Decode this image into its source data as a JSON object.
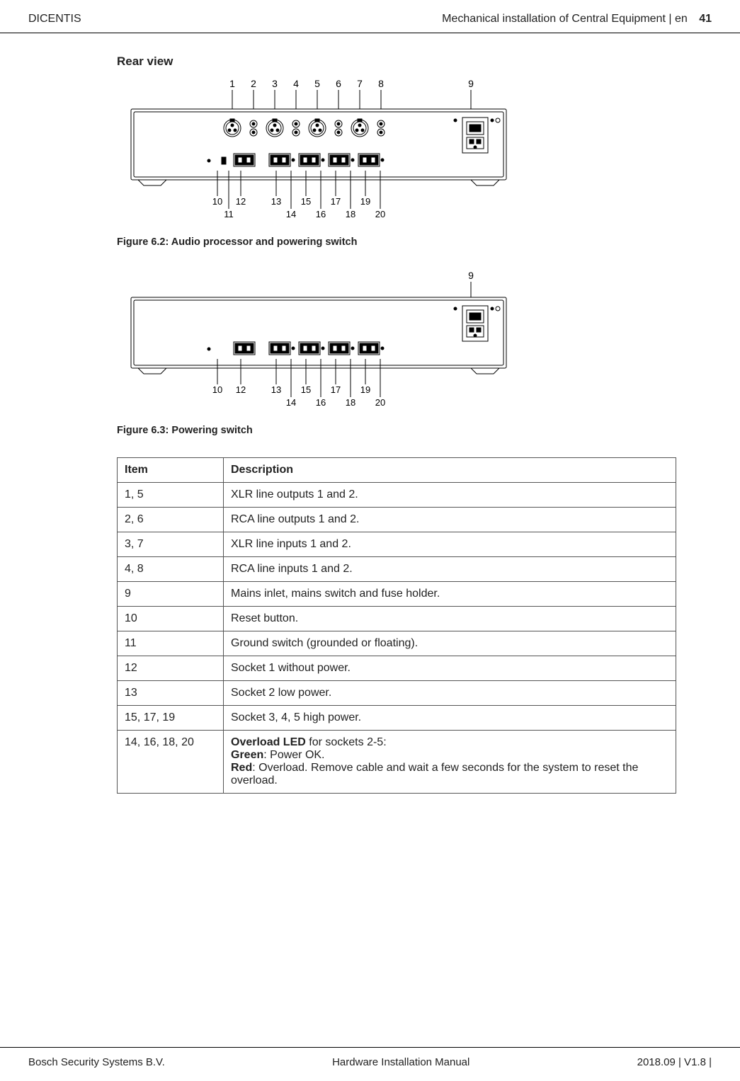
{
  "header": {
    "left": "DICENTIS",
    "right_text": "Mechanical installation of Central Equipment | en",
    "page": "41"
  },
  "section_title": "Rear view",
  "figure1": {
    "caption": "Figure 6.2: Audio processor and powering switch",
    "top_labels": [
      "1",
      "2",
      "3",
      "4",
      "5",
      "6",
      "7",
      "8",
      "9"
    ],
    "top_x": [
      163,
      193,
      223,
      253,
      283,
      313,
      343,
      373,
      500
    ],
    "bottom_labels_a": [
      "10",
      "12",
      "13",
      "15",
      "17",
      "19"
    ],
    "bottom_xa": [
      142,
      175,
      225,
      267,
      309,
      351
    ],
    "bottom_labels_b": [
      "11",
      "14",
      "16",
      "18",
      "20"
    ],
    "bottom_xb": [
      158,
      246,
      288,
      330,
      372
    ],
    "colors": {
      "stroke": "#000000",
      "fill_bg": "#ffffff",
      "fill_grey": "#8a8a8a"
    }
  },
  "figure2": {
    "caption": "Figure 6.3: Powering switch",
    "top_labels": [
      "9"
    ],
    "top_x": [
      500
    ],
    "bottom_labels_a": [
      "10",
      "12",
      "13",
      "15",
      "17",
      "19"
    ],
    "bottom_xa": [
      142,
      175,
      225,
      267,
      309,
      351
    ],
    "bottom_labels_b": [
      "14",
      "16",
      "18",
      "20"
    ],
    "bottom_xb": [
      246,
      288,
      330,
      372
    ],
    "colors": {
      "stroke": "#000000",
      "fill_bg": "#ffffff"
    }
  },
  "table": {
    "headers": [
      "Item",
      "Description"
    ],
    "rows": [
      {
        "item": "1, 5",
        "desc": "XLR line outputs 1 and 2."
      },
      {
        "item": "2, 6",
        "desc": "RCA line outputs 1 and 2."
      },
      {
        "item": "3, 7",
        "desc": "XLR line inputs 1 and 2."
      },
      {
        "item": "4, 8",
        "desc": "RCA line inputs 1 and 2."
      },
      {
        "item": "9",
        "desc": "Mains inlet, mains switch and fuse holder."
      },
      {
        "item": "10",
        "desc": "Reset button."
      },
      {
        "item": "11",
        "desc": "Ground switch (grounded or floating)."
      },
      {
        "item": "12",
        "desc": "Socket 1 without power."
      },
      {
        "item": "13",
        "desc": "Socket 2 low power."
      },
      {
        "item": "15, 17, 19",
        "desc": "Socket 3, 4, 5 high power."
      }
    ],
    "last_row": {
      "item": "14, 16, 18, 20",
      "line1_bold": "Overload LED",
      "line1_rest": " for sockets 2-5:",
      "line2_bold": "Green",
      "line2_rest": ": Power OK.",
      "line3_bold": "Red",
      "line3_rest": ": Overload. Remove cable and wait a few seconds for the system to reset the overload."
    }
  },
  "footer": {
    "left": "Bosch Security Systems B.V.",
    "center": "Hardware Installation Manual",
    "right": "2018.09 | V1.8 |"
  }
}
